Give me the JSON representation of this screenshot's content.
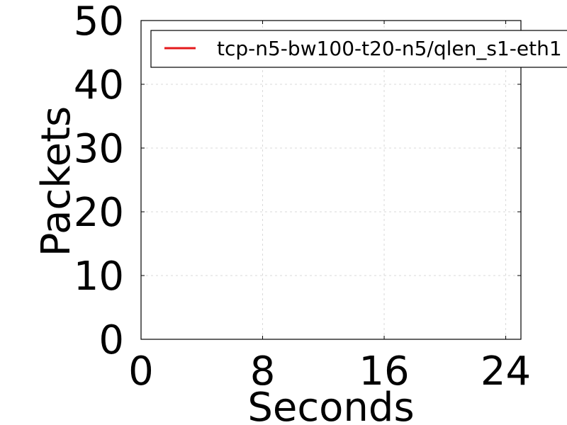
{
  "chart_data": {
    "type": "line",
    "title": "",
    "xlabel": "Seconds",
    "ylabel": "Packets",
    "xlim": [
      0,
      25
    ],
    "ylim": [
      0,
      50
    ],
    "x_ticks": [
      0,
      8,
      16,
      24
    ],
    "x_tick_labels": [
      "0",
      "8",
      "16",
      "24"
    ],
    "y_ticks": [
      0,
      10,
      20,
      30,
      40,
      50
    ],
    "y_tick_labels": [
      "0",
      "10",
      "20",
      "30",
      "40",
      "50"
    ],
    "grid": true,
    "legend_position": "top-right",
    "series": [
      {
        "name": "tcp-n5-bw100-t20-n5/qlen_s1-eth1",
        "color": "#e41a1c",
        "x": [],
        "y": []
      }
    ]
  }
}
